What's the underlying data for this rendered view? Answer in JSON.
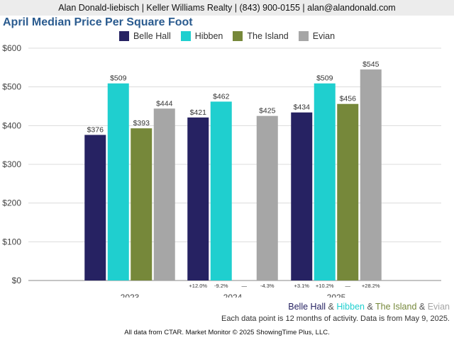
{
  "header": {
    "contact": "Alan Donald-liebisch | Keller Williams Realty | (843) 900-0155 | alan@alandonald.com"
  },
  "chart_data": {
    "type": "bar",
    "title": "April Median Price Per Square Foot",
    "categories": [
      "2023",
      "2024",
      "2025"
    ],
    "series": [
      {
        "name": "Belle Hall",
        "color": "#262262",
        "values": [
          376,
          421,
          434
        ],
        "labels": [
          "$376",
          "$421",
          "$434"
        ],
        "changes": [
          "",
          "+12.0%",
          "+3.1%"
        ]
      },
      {
        "name": "Hibben",
        "color": "#1fcfcf",
        "values": [
          509,
          462,
          509
        ],
        "labels": [
          "$509",
          "$462",
          "$509"
        ],
        "changes": [
          "",
          "-9.2%",
          "+10.2%"
        ]
      },
      {
        "name": "The Island",
        "color": "#76883a",
        "values": [
          393,
          null,
          456
        ],
        "labels": [
          "$393",
          "",
          "$456"
        ],
        "changes": [
          "",
          "—",
          "—"
        ]
      },
      {
        "name": "Evian",
        "color": "#a6a6a6",
        "values": [
          444,
          425,
          545
        ],
        "labels": [
          "$444",
          "$425",
          "$545"
        ],
        "changes": [
          "",
          "-4.3%",
          "+28.2%"
        ]
      }
    ],
    "ylim": [
      0,
      600
    ],
    "yticks": [
      0,
      100,
      200,
      300,
      400,
      500,
      600
    ],
    "ytick_labels": [
      "$0",
      "$100",
      "$200",
      "$300",
      "$400",
      "$500",
      "$600"
    ],
    "grid": true,
    "legend_position": "top"
  },
  "footer": {
    "legend_names": [
      "Belle Hall",
      "Hibben",
      "The Island",
      "Evian"
    ],
    "separator": " & ",
    "note": "Each data point is 12 months of activity. Data is from May 9, 2025.",
    "source": "All data from CTAR. Market Monitor © 2025 ShowingTime Plus, LLC."
  }
}
